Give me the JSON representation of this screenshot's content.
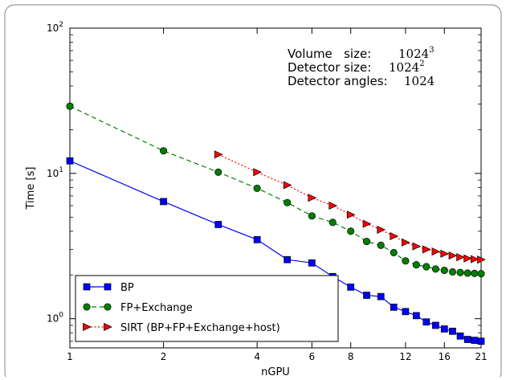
{
  "chart_data": {
    "type": "line",
    "title": "",
    "xlabel": "nGPU",
    "ylabel": "Time [s]",
    "x_scale": "log",
    "y_scale": "log",
    "xlim": [
      1,
      21
    ],
    "ylim": [
      0.63,
      100
    ],
    "x_ticks": [
      1,
      2,
      4,
      6,
      8,
      12,
      16,
      21
    ],
    "x_tick_labels": [
      "1",
      "2",
      "4",
      "6",
      "8",
      "12",
      "16",
      "21"
    ],
    "y_ticks": [
      1,
      10,
      100
    ],
    "y_tick_labels": [
      {
        "base": "10",
        "exp": "0"
      },
      {
        "base": "10",
        "exp": "1"
      },
      {
        "base": "10",
        "exp": "2"
      }
    ],
    "grid": false,
    "legend_position": "lower-left",
    "annotations": [
      {
        "label": "Volume   size:",
        "base": "1024",
        "exp": "3"
      },
      {
        "label": "Detector size:",
        "base": "1024",
        "exp": "2"
      },
      {
        "label": "Detector angles:",
        "base": "1024",
        "exp": ""
      }
    ],
    "series": [
      {
        "name": "BP",
        "color": "#0000ff",
        "marker": "square",
        "line": "solid",
        "x": [
          1,
          2,
          3,
          4,
          5,
          6,
          7,
          8,
          9,
          10,
          11,
          12,
          13,
          14,
          15,
          16,
          17,
          18,
          19,
          20,
          21
        ],
        "y": [
          12.2,
          6.4,
          4.45,
          3.5,
          2.55,
          2.42,
          1.95,
          1.65,
          1.45,
          1.42,
          1.2,
          1.12,
          1.05,
          0.95,
          0.9,
          0.85,
          0.82,
          0.76,
          0.72,
          0.71,
          0.7
        ]
      },
      {
        "name": "FP+Exchange",
        "color": "#008000",
        "marker": "circle",
        "line": "dashed",
        "x": [
          1,
          2,
          3,
          4,
          5,
          6,
          7,
          8,
          9,
          10,
          11,
          12,
          13,
          14,
          15,
          16,
          17,
          18,
          19,
          20,
          21
        ],
        "y": [
          29,
          14.3,
          10.2,
          7.9,
          6.3,
          5.1,
          4.6,
          4.0,
          3.4,
          3.2,
          2.85,
          2.5,
          2.35,
          2.28,
          2.2,
          2.15,
          2.1,
          2.08,
          2.06,
          2.05,
          2.04
        ]
      },
      {
        "name": "SIRT (BP+FP+Exchange+host)",
        "color": "#ff0000",
        "marker": "triangle-right",
        "line": "dotted",
        "x": [
          3,
          4,
          5,
          6,
          7,
          8,
          9,
          10,
          11,
          12,
          13,
          14,
          15,
          16,
          17,
          18,
          19,
          20,
          21
        ],
        "y": [
          13.5,
          10.2,
          8.3,
          6.8,
          6.0,
          5.2,
          4.5,
          4.1,
          3.7,
          3.35,
          3.15,
          3.0,
          2.9,
          2.8,
          2.72,
          2.65,
          2.6,
          2.57,
          2.55
        ]
      }
    ]
  }
}
